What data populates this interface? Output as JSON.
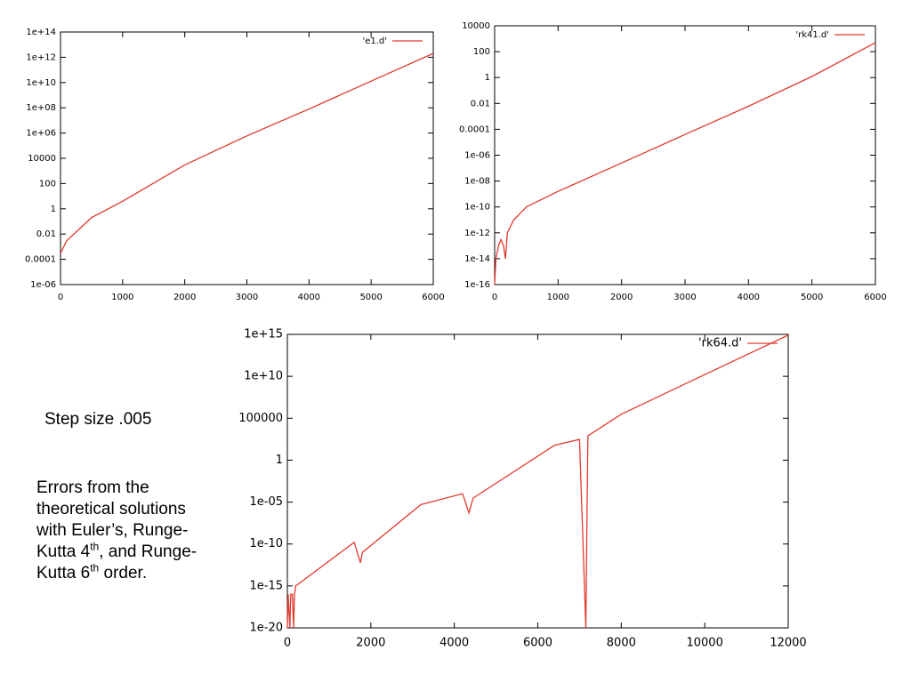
{
  "chart_data": [
    {
      "type": "line",
      "log_y": true,
      "legend": "top right",
      "x": [
        0,
        100,
        500,
        1000,
        2000,
        3000,
        4000,
        5000,
        6000
      ],
      "series": [
        {
          "name": "'e1.d'",
          "color": "#e03a2e",
          "values": [
            0.0003,
            0.003,
            0.2,
            4,
            3000,
            600000,
            80000000,
            13000000000,
            2000000000000
          ]
        }
      ],
      "xlim": [
        0,
        6000
      ],
      "xticks": [
        0,
        1000,
        2000,
        3000,
        4000,
        5000,
        6000
      ],
      "ylim": [
        1e-06,
        100000000000000.0
      ],
      "yticks": [
        {
          "value": 1e-06,
          "label": "1e-06"
        },
        0.0001,
        0.01,
        1,
        100,
        10000,
        {
          "value": 1000000.0,
          "label": "1e+06"
        },
        {
          "value": 100000000.0,
          "label": "1e+08"
        },
        {
          "value": 10000000000.0,
          "label": "1e+10"
        },
        {
          "value": 1000000000000.0,
          "label": "1e+12"
        },
        {
          "value": 100000000000000.0,
          "label": "1e+14"
        }
      ]
    },
    {
      "type": "line",
      "log_y": true,
      "legend": "top right",
      "x": [
        0,
        20,
        60,
        100,
        140,
        170,
        200,
        300,
        500,
        1000,
        2000,
        3000,
        4000,
        5000,
        6000
      ],
      "series": [
        {
          "name": "'rk41.d'",
          "color": "#e03a2e",
          "values": [
            1e-16,
            1e-14,
            1e-13,
            3e-13,
            1e-13,
            1e-14,
            1e-12,
            1e-11,
            1e-10,
            1.6e-09,
            2.5e-07,
            4e-05,
            0.006,
            1.2,
            500
          ]
        }
      ],
      "xlim": [
        0,
        6000
      ],
      "xticks": [
        0,
        1000,
        2000,
        3000,
        4000,
        5000,
        6000
      ],
      "ylim": [
        1e-16,
        10000
      ],
      "yticks": [
        {
          "value": 1e-16,
          "label": "1e-16"
        },
        {
          "value": 1e-14,
          "label": "1e-14"
        },
        {
          "value": 1e-12,
          "label": "1e-12"
        },
        {
          "value": 1e-10,
          "label": "1e-10"
        },
        {
          "value": 1e-08,
          "label": "1e-08"
        },
        {
          "value": 1e-06,
          "label": "1e-06"
        },
        0.0001,
        0.01,
        1,
        100,
        10000
      ]
    },
    {
      "type": "line",
      "log_y": true,
      "legend": "top right",
      "x": [
        0,
        20,
        60,
        80,
        120,
        150,
        170,
        200,
        1600,
        1750,
        1800,
        3200,
        4200,
        4350,
        4450,
        6400,
        7000,
        7150,
        7200,
        8000,
        10000,
        12000
      ],
      "series": [
        {
          "name": "'rk64.d'",
          "color": "#e03a2e",
          "values": [
            1e-20,
            1e-16,
            1e-20,
            1e-16,
            1e-16,
            1e-20,
            1e-16,
            1e-15,
            1.6e-10,
            6e-13,
            1e-11,
            5e-06,
            0.0001,
            5e-07,
            3e-05,
            60,
            300,
            1e-20,
            800,
            300000,
            16000000000,
            800000000000000
          ]
        }
      ],
      "xlim": [
        0,
        12000
      ],
      "xticks": [
        0,
        2000,
        4000,
        6000,
        8000,
        10000,
        12000
      ],
      "ylim": [
        1e-20,
        1000000000000000.0
      ],
      "yticks": [
        {
          "value": 1e-20,
          "label": "1e-20"
        },
        {
          "value": 1e-15,
          "label": "1e-15"
        },
        {
          "value": 1e-10,
          "label": "1e-10"
        },
        {
          "value": 1e-05,
          "label": "1e-05"
        },
        1,
        100000,
        {
          "value": 10000000000.0,
          "label": "1e+10"
        },
        {
          "value": 1000000000000000.0,
          "label": "1e+15"
        }
      ]
    }
  ],
  "caption": {
    "heading": "Step size .005",
    "lines": [
      [
        "Errors from the"
      ],
      [
        "theoretical solutions"
      ],
      [
        "with Euler’s, Runge-"
      ],
      [
        "Kutta 4",
        "th",
        ", and Runge-"
      ],
      [
        "Kutta 6",
        "th",
        " order."
      ]
    ]
  }
}
